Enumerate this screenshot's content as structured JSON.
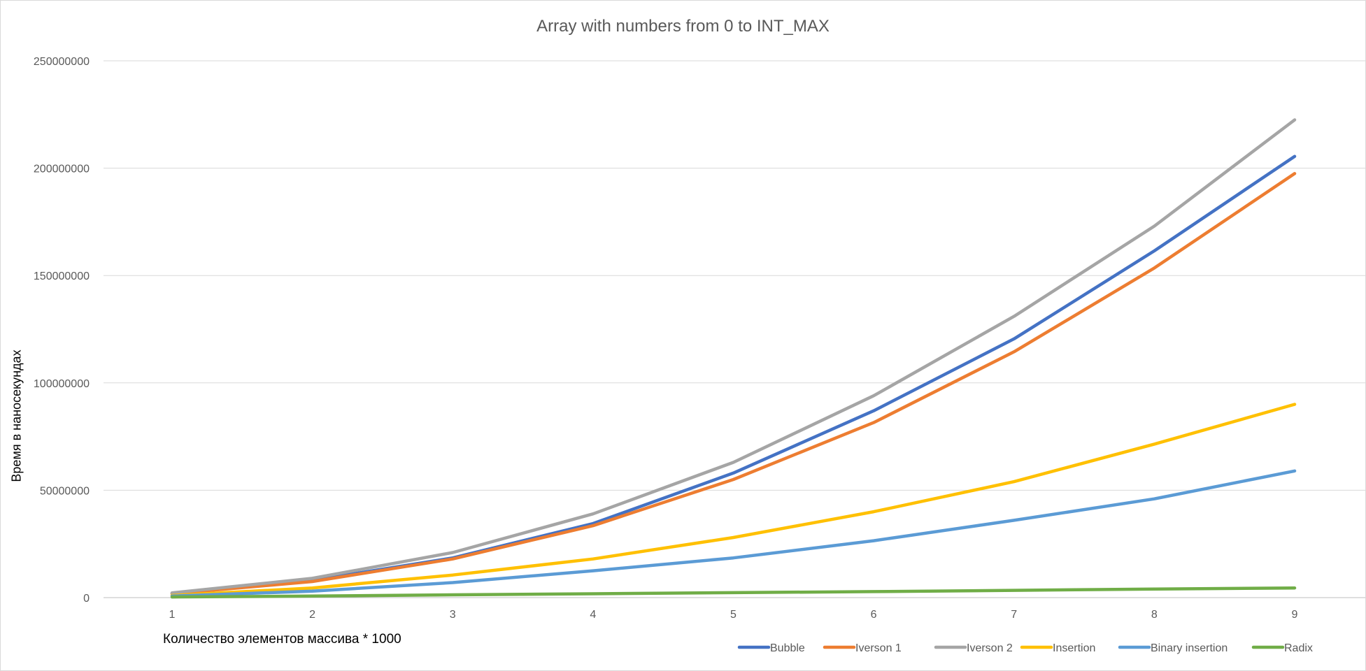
{
  "chart_data": {
    "type": "line",
    "title": "Array with numbers from 0 to INT_MAX",
    "xlabel": "Количество элементов массива * 1000",
    "ylabel": "Время в наносекундах",
    "x": [
      1,
      2,
      3,
      4,
      5,
      6,
      7,
      8,
      9
    ],
    "x_tick_labels": [
      "1",
      "2",
      "3",
      "4",
      "5",
      "6",
      "7",
      "8",
      "9"
    ],
    "y_tick_labels": [
      "0",
      "50000000",
      "100000000",
      "150000000",
      "200000000",
      "250000000"
    ],
    "ylim": [
      0,
      250000000
    ],
    "grid": "horizontal",
    "legend_position": "bottom-right",
    "series": [
      {
        "name": "Bubble",
        "color": "#4472C4",
        "values": [
          2000000,
          8000000,
          18500000,
          34500000,
          58000000,
          87000000,
          120500000,
          161500000,
          205500000
        ]
      },
      {
        "name": "Iverson 1",
        "color": "#ED7D31",
        "values": [
          1800000,
          7500000,
          18000000,
          33500000,
          55000000,
          81500000,
          114500000,
          153500000,
          197500000
        ]
      },
      {
        "name": "Iverson 2",
        "color": "#A5A5A5",
        "values": [
          2200000,
          9000000,
          21000000,
          39000000,
          63000000,
          94000000,
          131000000,
          173000000,
          222500000
        ]
      },
      {
        "name": "Insertion",
        "color": "#FFC000",
        "values": [
          1000000,
          4500000,
          10500000,
          18000000,
          28000000,
          40000000,
          54000000,
          71500000,
          90000000
        ]
      },
      {
        "name": "Binary insertion",
        "color": "#5B9BD5",
        "values": [
          700000,
          3000000,
          7000000,
          12500000,
          18500000,
          26500000,
          36000000,
          46000000,
          59000000
        ]
      },
      {
        "name": "Radix",
        "color": "#70AD47",
        "values": [
          300000,
          700000,
          1300000,
          1800000,
          2300000,
          2800000,
          3400000,
          4000000,
          4500000
        ]
      }
    ]
  }
}
